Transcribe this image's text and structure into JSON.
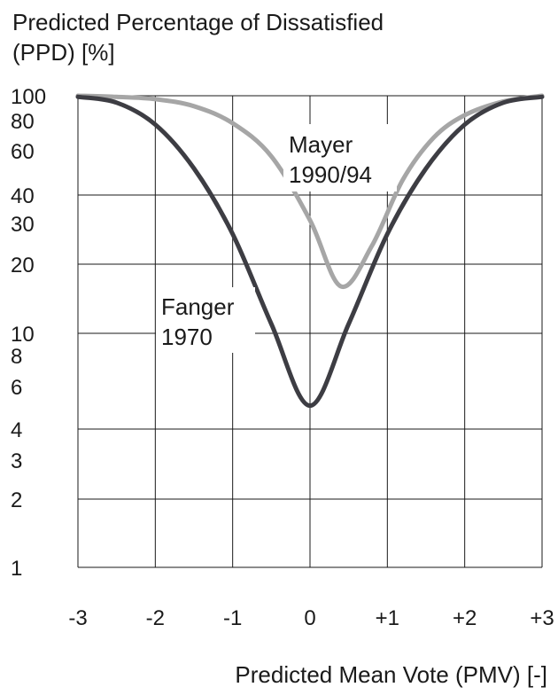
{
  "chart_data": {
    "type": "line",
    "title": "Predicted Percentage of Dissatisfied (PPD) [%]",
    "ylabel_lines": [
      "Predicted Percentage of Dissatisfied",
      "(PPD) [%]"
    ],
    "xlabel": "Predicted Mean Vote (PMV) [-]",
    "x_ticks": [
      "-3",
      "-2",
      "-1",
      "0",
      "+1",
      "+2",
      "+3"
    ],
    "x_tick_values": [
      -3,
      -2,
      -1,
      0,
      1,
      2,
      3
    ],
    "y_ticks": [
      "1",
      "2",
      "3",
      "4",
      "6",
      "8",
      "10",
      "20",
      "30",
      "40",
      "60",
      "80",
      "100"
    ],
    "y_tick_values": [
      1,
      2,
      3,
      4,
      6,
      8,
      10,
      20,
      30,
      40,
      60,
      80,
      100
    ],
    "yscale": "nonlinear",
    "xlim": [
      -3,
      3
    ],
    "ylim": [
      1,
      100
    ],
    "grid": true,
    "series": [
      {
        "name": "Fanger 1970",
        "label_lines": [
          "Fanger",
          "1970"
        ],
        "color": "#3d3d43",
        "x": [
          -3,
          -2.5,
          -2,
          -1.5,
          -1,
          -0.5,
          0,
          0.5,
          1,
          1.5,
          2,
          2.5,
          3
        ],
        "y": [
          99,
          94,
          77,
          51,
          27,
          11,
          5,
          11,
          27,
          51,
          77,
          94,
          99
        ]
      },
      {
        "name": "Mayer 1990/94",
        "label_lines": [
          "Mayer",
          "1990/94"
        ],
        "color": "#a6a6a6",
        "x": [
          -3,
          -2.5,
          -2,
          -1.5,
          -1,
          -0.5,
          0,
          0.4,
          0.8,
          1.2,
          1.6,
          2,
          2.5,
          3
        ],
        "y": [
          100,
          99,
          97,
          91,
          78,
          57,
          31,
          16,
          24,
          46,
          68,
          84,
          95,
          100
        ]
      }
    ]
  }
}
